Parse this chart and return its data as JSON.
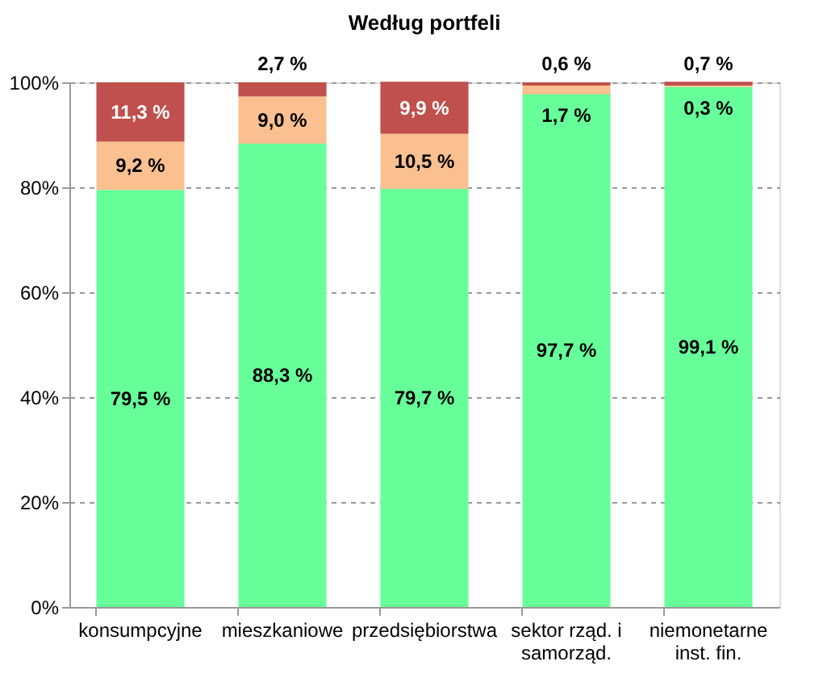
{
  "chart_data": {
    "type": "bar",
    "title": "Według portfeli",
    "stacked": true,
    "categories": [
      "konsumpcyjne",
      "mieszkaniowe",
      "przedsiębiorstwa",
      "sektor rząd. i samorząd.",
      "niemonetarne inst. fin."
    ],
    "series": [
      {
        "color": "#66ff99",
        "values": [
          79.5,
          88.3,
          79.7,
          97.7,
          99.1
        ],
        "value_labels": [
          "79,5 %",
          "88,3 %",
          "79,7 %",
          "97,7 %",
          "99,1 %"
        ]
      },
      {
        "color": "#fac090",
        "values": [
          9.2,
          9.0,
          10.5,
          1.7,
          0.3
        ],
        "value_labels": [
          "9,2 %",
          "9,0 %",
          "10,5 %",
          "1,7 %",
          "0,3 %"
        ]
      },
      {
        "color": "#c0504d",
        "values": [
          11.3,
          2.7,
          9.9,
          0.6,
          0.7
        ],
        "value_labels": [
          "11,3 %",
          "2,7 %",
          "9,9 %",
          "0,6 %",
          "0,7 %"
        ]
      }
    ],
    "ylim": [
      0,
      100
    ],
    "yticks": [
      {
        "value": 0,
        "label": "0%"
      },
      {
        "value": 20,
        "label": "20%"
      },
      {
        "value": 40,
        "label": "40%"
      },
      {
        "value": 60,
        "label": "60%"
      },
      {
        "value": 80,
        "label": "80%"
      },
      {
        "value": 100,
        "label": "100%"
      }
    ],
    "grid": "y"
  }
}
